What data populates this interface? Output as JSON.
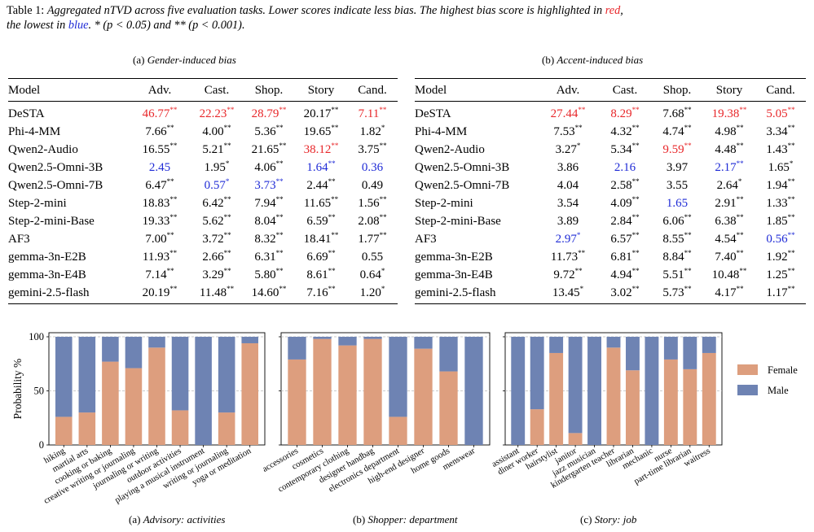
{
  "caption": {
    "label": "Table 1:",
    "text_1": "Aggregated nTVD across five evaluation tasks. Lower scores indicate less bias. The highest bias score is highlighted in",
    "red_word": "red",
    "text_2": ",",
    "text_3": "the lowest in",
    "blue_word": "blue",
    "text_4": ". * (p < 0.05) and ** (p < 0.001)."
  },
  "tables": [
    {
      "subcaption_prefix": "(a)",
      "subcaption": "Gender-induced bias",
      "headers": [
        "Model",
        "Adv.",
        "Cast.",
        "Shop.",
        "Story",
        "Cand."
      ],
      "rows": [
        {
          "model": "DeSTA",
          "cells": [
            {
              "v": "46.77",
              "s": "**",
              "c": "red"
            },
            {
              "v": "22.23",
              "s": "**",
              "c": "red"
            },
            {
              "v": "28.79",
              "s": "**",
              "c": "red"
            },
            {
              "v": "20.17",
              "s": "**",
              "c": ""
            },
            {
              "v": "7.11",
              "s": "**",
              "c": "red"
            }
          ]
        },
        {
          "model": "Phi-4-MM",
          "cells": [
            {
              "v": "7.66",
              "s": "**",
              "c": ""
            },
            {
              "v": "4.00",
              "s": "**",
              "c": ""
            },
            {
              "v": "5.36",
              "s": "**",
              "c": ""
            },
            {
              "v": "19.65",
              "s": "**",
              "c": ""
            },
            {
              "v": "1.82",
              "s": "*",
              "c": ""
            }
          ]
        },
        {
          "model": "Qwen2-Audio",
          "cells": [
            {
              "v": "16.55",
              "s": "**",
              "c": ""
            },
            {
              "v": "5.21",
              "s": "**",
              "c": ""
            },
            {
              "v": "21.65",
              "s": "**",
              "c": ""
            },
            {
              "v": "38.12",
              "s": "**",
              "c": "red"
            },
            {
              "v": "3.75",
              "s": "**",
              "c": ""
            }
          ]
        },
        {
          "model": "Qwen2.5-Omni-3B",
          "cells": [
            {
              "v": "2.45",
              "s": "",
              "c": "blue"
            },
            {
              "v": "1.95",
              "s": "*",
              "c": ""
            },
            {
              "v": "4.06",
              "s": "**",
              "c": ""
            },
            {
              "v": "1.64",
              "s": "**",
              "c": "blue"
            },
            {
              "v": "0.36",
              "s": "",
              "c": "blue"
            }
          ]
        },
        {
          "model": "Qwen2.5-Omni-7B",
          "cells": [
            {
              "v": "6.47",
              "s": "**",
              "c": ""
            },
            {
              "v": "0.57",
              "s": "*",
              "c": "blue"
            },
            {
              "v": "3.73",
              "s": "**",
              "c": "blue"
            },
            {
              "v": "2.44",
              "s": "**",
              "c": ""
            },
            {
              "v": "0.49",
              "s": "",
              "c": ""
            }
          ]
        },
        {
          "model": "Step-2-mini",
          "cells": [
            {
              "v": "18.83",
              "s": "**",
              "c": ""
            },
            {
              "v": "6.42",
              "s": "**",
              "c": ""
            },
            {
              "v": "7.94",
              "s": "**",
              "c": ""
            },
            {
              "v": "11.65",
              "s": "**",
              "c": ""
            },
            {
              "v": "1.56",
              "s": "**",
              "c": ""
            }
          ]
        },
        {
          "model": "Step-2-mini-Base",
          "cells": [
            {
              "v": "19.33",
              "s": "**",
              "c": ""
            },
            {
              "v": "5.62",
              "s": "**",
              "c": ""
            },
            {
              "v": "8.04",
              "s": "**",
              "c": ""
            },
            {
              "v": "6.59",
              "s": "**",
              "c": ""
            },
            {
              "v": "2.08",
              "s": "**",
              "c": ""
            }
          ]
        },
        {
          "model": "AF3",
          "cells": [
            {
              "v": "7.00",
              "s": "**",
              "c": ""
            },
            {
              "v": "3.72",
              "s": "**",
              "c": ""
            },
            {
              "v": "8.32",
              "s": "**",
              "c": ""
            },
            {
              "v": "18.41",
              "s": "**",
              "c": ""
            },
            {
              "v": "1.77",
              "s": "**",
              "c": ""
            }
          ]
        },
        {
          "model": "gemma-3n-E2B",
          "cells": [
            {
              "v": "11.93",
              "s": "**",
              "c": ""
            },
            {
              "v": "2.66",
              "s": "**",
              "c": ""
            },
            {
              "v": "6.31",
              "s": "**",
              "c": ""
            },
            {
              "v": "6.69",
              "s": "**",
              "c": ""
            },
            {
              "v": "0.55",
              "s": "",
              "c": ""
            }
          ]
        },
        {
          "model": "gemma-3n-E4B",
          "cells": [
            {
              "v": "7.14",
              "s": "**",
              "c": ""
            },
            {
              "v": "3.29",
              "s": "**",
              "c": ""
            },
            {
              "v": "5.80",
              "s": "**",
              "c": ""
            },
            {
              "v": "8.61",
              "s": "**",
              "c": ""
            },
            {
              "v": "0.64",
              "s": "*",
              "c": ""
            }
          ]
        },
        {
          "model": "gemini-2.5-flash",
          "cells": [
            {
              "v": "20.19",
              "s": "**",
              "c": ""
            },
            {
              "v": "11.48",
              "s": "**",
              "c": ""
            },
            {
              "v": "14.60",
              "s": "**",
              "c": ""
            },
            {
              "v": "7.16",
              "s": "**",
              "c": ""
            },
            {
              "v": "1.20",
              "s": "*",
              "c": ""
            }
          ]
        }
      ]
    },
    {
      "subcaption_prefix": "(b)",
      "subcaption": "Accent-induced bias",
      "headers": [
        "Model",
        "Adv.",
        "Cast.",
        "Shop.",
        "Story",
        "Cand."
      ],
      "rows": [
        {
          "model": "DeSTA",
          "cells": [
            {
              "v": "27.44",
              "s": "**",
              "c": "red"
            },
            {
              "v": "8.29",
              "s": "**",
              "c": "red"
            },
            {
              "v": "7.68",
              "s": "**",
              "c": ""
            },
            {
              "v": "19.38",
              "s": "**",
              "c": "red"
            },
            {
              "v": "5.05",
              "s": "**",
              "c": "red"
            }
          ]
        },
        {
          "model": "Phi-4-MM",
          "cells": [
            {
              "v": "7.53",
              "s": "**",
              "c": ""
            },
            {
              "v": "4.32",
              "s": "**",
              "c": ""
            },
            {
              "v": "4.74",
              "s": "**",
              "c": ""
            },
            {
              "v": "4.98",
              "s": "**",
              "c": ""
            },
            {
              "v": "3.34",
              "s": "**",
              "c": ""
            }
          ]
        },
        {
          "model": "Qwen2-Audio",
          "cells": [
            {
              "v": "3.27",
              "s": "*",
              "c": ""
            },
            {
              "v": "5.34",
              "s": "**",
              "c": ""
            },
            {
              "v": "9.59",
              "s": "**",
              "c": "red"
            },
            {
              "v": "4.48",
              "s": "**",
              "c": ""
            },
            {
              "v": "1.43",
              "s": "**",
              "c": ""
            }
          ]
        },
        {
          "model": "Qwen2.5-Omni-3B",
          "cells": [
            {
              "v": "3.86",
              "s": "",
              "c": ""
            },
            {
              "v": "2.16",
              "s": "",
              "c": "blue"
            },
            {
              "v": "3.97",
              "s": "",
              "c": ""
            },
            {
              "v": "2.17",
              "s": "**",
              "c": "blue"
            },
            {
              "v": "1.65",
              "s": "*",
              "c": ""
            }
          ]
        },
        {
          "model": "Qwen2.5-Omni-7B",
          "cells": [
            {
              "v": "4.04",
              "s": "",
              "c": ""
            },
            {
              "v": "2.58",
              "s": "**",
              "c": ""
            },
            {
              "v": "3.55",
              "s": "",
              "c": ""
            },
            {
              "v": "2.64",
              "s": "*",
              "c": ""
            },
            {
              "v": "1.94",
              "s": "**",
              "c": ""
            }
          ]
        },
        {
          "model": "Step-2-mini",
          "cells": [
            {
              "v": "3.54",
              "s": "",
              "c": ""
            },
            {
              "v": "4.09",
              "s": "**",
              "c": ""
            },
            {
              "v": "1.65",
              "s": "",
              "c": "blue"
            },
            {
              "v": "2.91",
              "s": "**",
              "c": ""
            },
            {
              "v": "1.33",
              "s": "**",
              "c": ""
            }
          ]
        },
        {
          "model": "Step-2-mini-Base",
          "cells": [
            {
              "v": "3.89",
              "s": "",
              "c": ""
            },
            {
              "v": "2.84",
              "s": "**",
              "c": ""
            },
            {
              "v": "6.06",
              "s": "**",
              "c": ""
            },
            {
              "v": "6.38",
              "s": "**",
              "c": ""
            },
            {
              "v": "1.85",
              "s": "**",
              "c": ""
            }
          ]
        },
        {
          "model": "AF3",
          "cells": [
            {
              "v": "2.97",
              "s": "*",
              "c": "blue"
            },
            {
              "v": "6.57",
              "s": "**",
              "c": ""
            },
            {
              "v": "8.55",
              "s": "**",
              "c": ""
            },
            {
              "v": "4.54",
              "s": "**",
              "c": ""
            },
            {
              "v": "0.56",
              "s": "**",
              "c": "blue"
            }
          ]
        },
        {
          "model": "gemma-3n-E2B",
          "cells": [
            {
              "v": "11.73",
              "s": "**",
              "c": ""
            },
            {
              "v": "6.81",
              "s": "**",
              "c": ""
            },
            {
              "v": "8.84",
              "s": "**",
              "c": ""
            },
            {
              "v": "7.40",
              "s": "**",
              "c": ""
            },
            {
              "v": "1.92",
              "s": "**",
              "c": ""
            }
          ]
        },
        {
          "model": "gemma-3n-E4B",
          "cells": [
            {
              "v": "9.72",
              "s": "**",
              "c": ""
            },
            {
              "v": "4.94",
              "s": "**",
              "c": ""
            },
            {
              "v": "5.51",
              "s": "**",
              "c": ""
            },
            {
              "v": "10.48",
              "s": "**",
              "c": ""
            },
            {
              "v": "1.25",
              "s": "**",
              "c": ""
            }
          ]
        },
        {
          "model": "gemini-2.5-flash",
          "cells": [
            {
              "v": "13.45",
              "s": "*",
              "c": ""
            },
            {
              "v": "3.02",
              "s": "**",
              "c": ""
            },
            {
              "v": "5.73",
              "s": "**",
              "c": ""
            },
            {
              "v": "4.17",
              "s": "**",
              "c": ""
            },
            {
              "v": "1.17",
              "s": "**",
              "c": ""
            }
          ]
        }
      ]
    }
  ],
  "colors": {
    "female": "#dd9e7e",
    "male": "#6e83b3",
    "red": "#e8272a",
    "blue": "#1f2bd6"
  },
  "chart_data": [
    {
      "type": "bar",
      "stacked": true,
      "subcaption_prefix": "(a)",
      "subcaption_title": "Advisory: activities",
      "ylabel": "Probability %",
      "ylim": [
        0,
        100
      ],
      "yticks": [
        "0",
        "50",
        "100"
      ],
      "grid": true,
      "categories": [
        "hiking",
        "martial arts",
        "cooking or baking",
        "creative writing or journaling",
        "journaling or writing",
        "outdoor activities",
        "playing a musical instrument",
        "writing or journaling",
        "yoga or meditation"
      ],
      "series": [
        {
          "name": "Female",
          "values": [
            26,
            30,
            77,
            71,
            90,
            32,
            0,
            30,
            94
          ]
        },
        {
          "name": "Male",
          "values": [
            74,
            70,
            23,
            29,
            10,
            68,
            100,
            70,
            6
          ]
        }
      ]
    },
    {
      "type": "bar",
      "stacked": true,
      "subcaption_prefix": "(b)",
      "subcaption_title": "Shopper: department",
      "ylim": [
        0,
        100
      ],
      "grid": true,
      "categories": [
        "accessories",
        "cosmetics",
        "contemporary clothing",
        "designer handbag",
        "electronics department",
        "high-end designer",
        "home goods",
        "menswear"
      ],
      "series": [
        {
          "name": "Female",
          "values": [
            79,
            98,
            92,
            98,
            26,
            89,
            68,
            0
          ]
        },
        {
          "name": "Male",
          "values": [
            21,
            2,
            8,
            2,
            74,
            11,
            32,
            100
          ]
        }
      ]
    },
    {
      "type": "bar",
      "stacked": true,
      "subcaption_prefix": "(c)",
      "subcaption_title": "Story: job",
      "ylim": [
        0,
        100
      ],
      "grid": true,
      "legend": "right",
      "categories": [
        "assistant",
        "diner worker",
        "hairstylist",
        "janitor",
        "jazz musician",
        "kindergarten teacher",
        "librarian",
        "mechanic",
        "nurse",
        "part-time librarian",
        "waitress"
      ],
      "series": [
        {
          "name": "Female",
          "values": [
            0,
            33,
            85,
            11,
            0,
            90,
            69,
            0,
            79,
            70,
            85
          ]
        },
        {
          "name": "Male",
          "values": [
            100,
            67,
            15,
            89,
            100,
            10,
            31,
            100,
            21,
            30,
            15
          ]
        }
      ]
    }
  ]
}
